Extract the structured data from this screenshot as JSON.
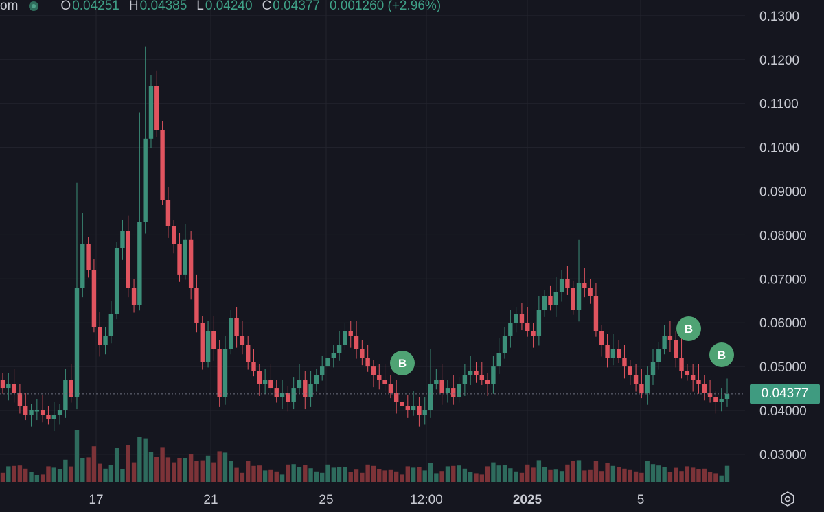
{
  "header": {
    "symbol": "om",
    "open_label": "O",
    "open": "0.04251",
    "high_label": "H",
    "high": "0.04385",
    "low_label": "L",
    "low": "0.04240",
    "close_label": "C",
    "close": "0.04377",
    "change": "0.001260 (+2.96%)"
  },
  "colors": {
    "up": "#3c8f79",
    "down": "#e0545f",
    "up_vol": "#2e6b5d",
    "down_vol": "#7c3338",
    "grid": "#23242e",
    "bg": "#15161f",
    "axis_text": "#c9cbd3",
    "marker": "#4fa374"
  },
  "current_price_label": "0.04377",
  "settings_icon": "gear-icon",
  "chart_data": {
    "type": "candlestick",
    "y_ticks": [
      "0.1300",
      "0.1200",
      "0.1100",
      "0.1000",
      "0.09000",
      "0.08000",
      "0.07000",
      "0.06000",
      "0.05000",
      "0.04000",
      "0.03000"
    ],
    "ylim": [
      0.023,
      0.1325
    ],
    "x_ticks": [
      "17",
      "21",
      "25",
      "12:00",
      "2025",
      "5"
    ],
    "markers": [
      "B",
      "B",
      "B"
    ],
    "close_series": [
      0.045,
      0.046,
      0.044,
      0.041,
      0.039,
      0.04,
      0.04,
      0.039,
      0.038,
      0.039,
      0.04,
      0.047,
      0.043,
      0.068,
      0.078,
      0.072,
      0.059,
      0.055,
      0.057,
      0.062,
      0.077,
      0.081,
      0.068,
      0.064,
      0.083,
      0.102,
      0.114,
      0.104,
      0.088,
      0.082,
      0.078,
      0.071,
      0.079,
      0.068,
      0.06,
      0.051,
      0.058,
      0.054,
      0.043,
      0.054,
      0.061,
      0.057,
      0.055,
      0.051,
      0.049,
      0.046,
      0.047,
      0.045,
      0.043,
      0.044,
      0.042,
      0.045,
      0.047,
      0.043,
      0.046,
      0.048,
      0.05,
      0.052,
      0.053,
      0.055,
      0.058,
      0.057,
      0.054,
      0.052,
      0.05,
      0.048,
      0.047,
      0.046,
      0.044,
      0.042,
      0.041,
      0.04,
      0.041,
      0.039,
      0.04,
      0.046,
      0.047,
      0.044,
      0.045,
      0.043,
      0.046,
      0.048,
      0.049,
      0.048,
      0.047,
      0.046,
      0.05,
      0.053,
      0.057,
      0.06,
      0.062,
      0.06,
      0.058,
      0.057,
      0.063,
      0.066,
      0.064,
      0.067,
      0.07,
      0.068,
      0.063,
      0.069,
      0.068,
      0.066,
      0.058,
      0.055,
      0.052,
      0.054,
      0.052,
      0.05,
      0.048,
      0.046,
      0.044,
      0.048,
      0.051,
      0.054,
      0.057,
      0.056,
      0.052,
      0.049,
      0.048,
      0.047,
      0.046,
      0.044,
      0.043,
      0.042,
      0.0425,
      0.04377
    ]
  }
}
